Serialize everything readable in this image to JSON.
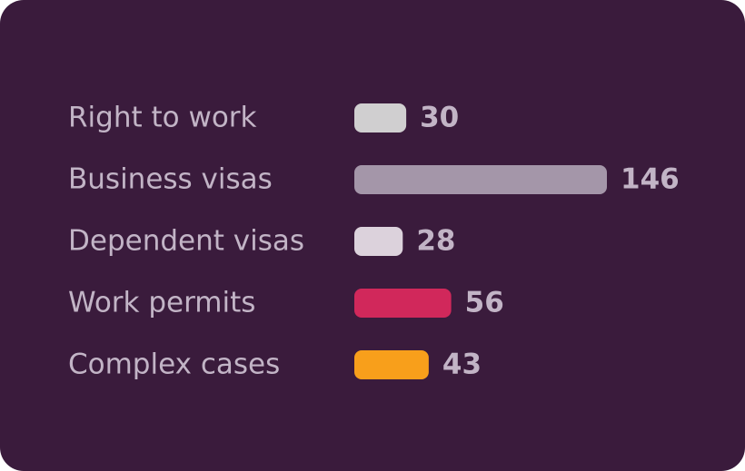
{
  "chart_data": {
    "type": "bar",
    "orientation": "horizontal",
    "categories": [
      "Right to work",
      "Business visas",
      "Dependent visas",
      "Work permits",
      "Complex cases"
    ],
    "values": [
      30,
      146,
      28,
      56,
      43
    ],
    "colors": [
      "#d0cfd0",
      "#a496a9",
      "#dcd2dc",
      "#d1285b",
      "#f89f1b"
    ]
  }
}
